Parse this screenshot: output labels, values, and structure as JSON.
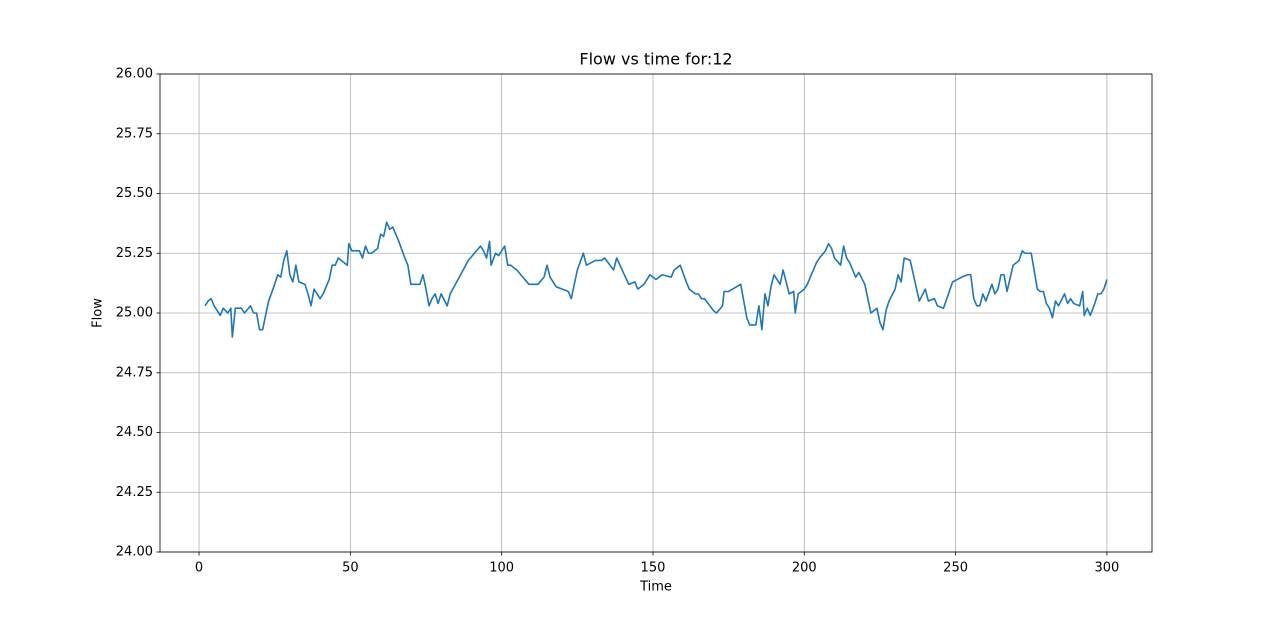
{
  "chart_data": {
    "type": "line",
    "title": "Flow vs time for:12",
    "xlabel": "Time",
    "ylabel": "Flow",
    "xlim": [
      -12.9,
      314.9
    ],
    "xticks": [
      0,
      50,
      100,
      150,
      200,
      250,
      300
    ],
    "ylim": [
      24,
      26
    ],
    "yticks": [
      {
        "value": 24,
        "label": "24.00"
      },
      {
        "value": 24.25,
        "label": "24.25"
      },
      {
        "value": 24.5,
        "label": "24.50"
      },
      {
        "value": 24.75,
        "label": "24.75"
      },
      {
        "value": 25,
        "label": "25.00"
      },
      {
        "value": 25.25,
        "label": "25.25"
      },
      {
        "value": 25.5,
        "label": "25.50"
      },
      {
        "value": 25.75,
        "label": "25.75"
      },
      {
        "value": 26,
        "label": "26.00"
      }
    ],
    "grid": true,
    "series": [
      {
        "color": "#1f77b4",
        "x": [
          2,
          3,
          4,
          5,
          7,
          8,
          9.5,
          10.5,
          11,
          12,
          14,
          15,
          17,
          18,
          19,
          20,
          21,
          23,
          25,
          26,
          27,
          28,
          29,
          30,
          31,
          32,
          33,
          35,
          36,
          37,
          38,
          40,
          41,
          43,
          44,
          45,
          46,
          49,
          49.5,
          50.5,
          53,
          54,
          55,
          56,
          57,
          59,
          60,
          61,
          62,
          63,
          64,
          65,
          66,
          68,
          69,
          70,
          71,
          73,
          74,
          75,
          76,
          77,
          78,
          79,
          80,
          82,
          83,
          89,
          91,
          93,
          94,
          95,
          96,
          96.5,
          98,
          99,
          100,
          101,
          102,
          103,
          105,
          109,
          112,
          114,
          115,
          116,
          118,
          122,
          123,
          125,
          127,
          128,
          131,
          133,
          134,
          137,
          138,
          142,
          144,
          145,
          147,
          149,
          151,
          153,
          156,
          157,
          159,
          161,
          162,
          164,
          165,
          166,
          167,
          170,
          171,
          173,
          173.5,
          175,
          179,
          180,
          181,
          182,
          184,
          185,
          186,
          187,
          188,
          189,
          190,
          192,
          193,
          195,
          196.5,
          197,
          198,
          200,
          201,
          204,
          205,
          207,
          208,
          209,
          210,
          212,
          213,
          214,
          215,
          217,
          218,
          220,
          222,
          224,
          225,
          226,
          227,
          228,
          230,
          231,
          232,
          233,
          235,
          238,
          240,
          241,
          243,
          244,
          246,
          249,
          252,
          254,
          255,
          256,
          257,
          258,
          259,
          260,
          262,
          263,
          264,
          265,
          266,
          267,
          269,
          271,
          272,
          273,
          275,
          277,
          278,
          279,
          280,
          281,
          282,
          283,
          284,
          286,
          287,
          288,
          289,
          291,
          292,
          292.5,
          293.5,
          294.5,
          296,
          297,
          298,
          299,
          300
        ],
        "values": [
          25.03,
          25.05,
          25.06,
          25.03,
          24.99,
          25.02,
          25.0,
          25.02,
          24.9,
          25.02,
          25.02,
          25.0,
          25.03,
          25.0,
          25.0,
          24.93,
          24.93,
          25.05,
          25.12,
          25.16,
          25.15,
          25.22,
          25.26,
          25.16,
          25.13,
          25.2,
          25.13,
          25.12,
          25.08,
          25.03,
          25.1,
          25.06,
          25.08,
          25.14,
          25.2,
          25.2,
          25.23,
          25.2,
          25.29,
          25.26,
          25.26,
          25.23,
          25.28,
          25.25,
          25.25,
          25.27,
          25.33,
          25.32,
          25.38,
          25.35,
          25.36,
          25.33,
          25.3,
          25.23,
          25.2,
          25.12,
          25.12,
          25.12,
          25.16,
          25.1,
          25.03,
          25.06,
          25.08,
          25.04,
          25.08,
          25.03,
          25.08,
          25.22,
          25.25,
          25.28,
          25.26,
          25.23,
          25.3,
          25.2,
          25.25,
          25.24,
          25.26,
          25.28,
          25.2,
          25.2,
          25.18,
          25.12,
          25.12,
          25.15,
          25.2,
          25.15,
          25.11,
          25.09,
          25.06,
          25.18,
          25.25,
          25.2,
          25.22,
          25.22,
          25.23,
          25.18,
          25.23,
          25.12,
          25.13,
          25.1,
          25.12,
          25.16,
          25.14,
          25.16,
          25.15,
          25.18,
          25.2,
          25.13,
          25.1,
          25.08,
          25.08,
          25.06,
          25.06,
          25.01,
          25.0,
          25.03,
          25.09,
          25.09,
          25.12,
          25.05,
          24.98,
          24.95,
          24.95,
          25.03,
          24.93,
          25.08,
          25.03,
          25.11,
          25.16,
          25.12,
          25.18,
          25.08,
          25.09,
          25.0,
          25.08,
          25.1,
          25.12,
          25.21,
          25.23,
          25.26,
          25.29,
          25.27,
          25.23,
          25.2,
          25.28,
          25.23,
          25.21,
          25.15,
          25.17,
          25.12,
          25.0,
          25.02,
          24.96,
          24.93,
          25.01,
          25.05,
          25.1,
          25.16,
          25.13,
          25.23,
          25.22,
          25.05,
          25.1,
          25.05,
          25.06,
          25.03,
          25.02,
          25.13,
          25.15,
          25.16,
          25.16,
          25.06,
          25.03,
          25.03,
          25.08,
          25.05,
          25.12,
          25.08,
          25.1,
          25.16,
          25.16,
          25.09,
          25.2,
          25.22,
          25.26,
          25.25,
          25.25,
          25.1,
          25.09,
          25.09,
          25.04,
          25.02,
          24.98,
          25.05,
          25.03,
          25.08,
          25.04,
          25.06,
          25.04,
          25.03,
          25.09,
          24.99,
          25.02,
          24.99,
          25.04,
          25.08,
          25.08,
          25.1,
          25.14
        ]
      }
    ]
  }
}
